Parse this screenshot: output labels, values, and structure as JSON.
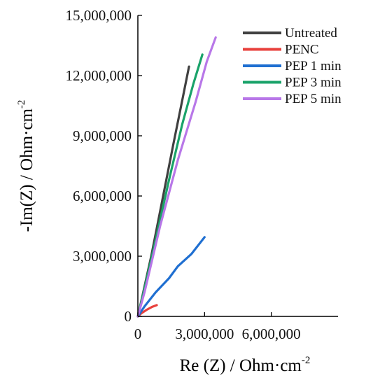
{
  "chart_data": {
    "type": "line",
    "title": "",
    "xlabel": "Re (Z) / Ohm·cm",
    "xlabel_sup": "-2",
    "ylabel": "-Im(Z) / Ohm·cm",
    "ylabel_sup": "-2",
    "xlim": [
      0,
      9000000
    ],
    "ylim": [
      0,
      15000000
    ],
    "x_ticks": [
      0,
      3000000,
      6000000
    ],
    "x_tick_labels": [
      "0",
      "3,000,000",
      "6,000,000"
    ],
    "y_ticks": [
      0,
      3000000,
      6000000,
      9000000,
      12000000,
      15000000
    ],
    "y_tick_labels": [
      "0",
      "3,000,000",
      "6,000,000",
      "9,000,000",
      "12,000,000",
      "15,000,000"
    ],
    "grid": false,
    "legend_position": "top-right",
    "series": [
      {
        "name": "Untreated",
        "color": "#404040",
        "points": [
          [
            0,
            0
          ],
          [
            200000,
            1000000
          ],
          [
            600000,
            3000000
          ],
          [
            1100000,
            5800000
          ],
          [
            1600000,
            8600000
          ],
          [
            2000000,
            10800000
          ],
          [
            2300000,
            12450000
          ]
        ]
      },
      {
        "name": "PENC",
        "color": "#e8413c",
        "points": [
          [
            0,
            0
          ],
          [
            150000,
            150000
          ],
          [
            400000,
            330000
          ],
          [
            650000,
            480000
          ],
          [
            850000,
            560000
          ]
        ]
      },
      {
        "name": "PEP 1 min",
        "color": "#1f6fd1",
        "points": [
          [
            0,
            0
          ],
          [
            300000,
            500000
          ],
          [
            800000,
            1200000
          ],
          [
            1400000,
            1900000
          ],
          [
            1800000,
            2500000
          ],
          [
            2400000,
            3100000
          ],
          [
            3000000,
            3950000
          ]
        ]
      },
      {
        "name": "PEP 3 min",
        "color": "#1aa36a",
        "points": [
          [
            0,
            0
          ],
          [
            300000,
            1400000
          ],
          [
            800000,
            3800000
          ],
          [
            1400000,
            6800000
          ],
          [
            2000000,
            9600000
          ],
          [
            2500000,
            11600000
          ],
          [
            2900000,
            13050000
          ]
        ]
      },
      {
        "name": "PEP 5 min",
        "color": "#b877e8",
        "points": [
          [
            0,
            0
          ],
          [
            300000,
            1200000
          ],
          [
            1000000,
            4500000
          ],
          [
            1800000,
            7800000
          ],
          [
            2600000,
            10700000
          ],
          [
            3100000,
            12700000
          ],
          [
            3500000,
            13900000
          ]
        ]
      }
    ]
  }
}
